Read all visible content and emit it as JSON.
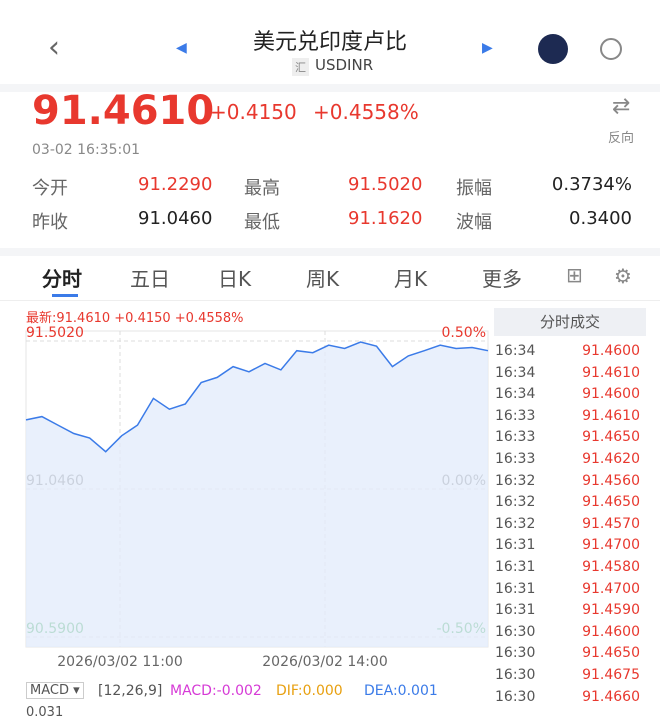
{
  "header": {
    "title": "美元兑印度卢比",
    "badge": "汇",
    "symbol": "USDINR"
  },
  "quote": {
    "price": "91.4610",
    "change": "+0.4150",
    "percent": "+0.4558%",
    "swap_label": "反向",
    "time": "03-02 16:35:01"
  },
  "stats": {
    "rows": [
      [
        "今开",
        "91.2290",
        "最高",
        "91.5020",
        "振幅",
        "0.3734%"
      ],
      [
        "昨收",
        "91.0460",
        "最低",
        "91.1620",
        "波幅",
        "0.3400"
      ]
    ]
  },
  "tabs": [
    "分时",
    "五日",
    "日K",
    "周K",
    "月K",
    "更多"
  ],
  "chart": {
    "type": "line",
    "legend": "最新:91.4610 +0.4150 +0.4558%",
    "color": "#3b7be8",
    "values": [
      91.259,
      91.269,
      91.243,
      91.217,
      91.203,
      91.161,
      91.21,
      91.243,
      91.325,
      91.292,
      91.308,
      91.374,
      91.39,
      91.423,
      91.407,
      91.433,
      91.413,
      91.472,
      91.466,
      91.489,
      91.479,
      91.499,
      91.486,
      91.423,
      91.456,
      91.472,
      91.489,
      91.479,
      91.482,
      91.472
    ],
    "ylim": [
      90.59,
      91.502
    ],
    "yticks": [
      {
        "value": 90.59,
        "label": "90.5900"
      },
      {
        "value": 91.046,
        "label": "91.0460"
      },
      {
        "value": 91.502,
        "label": "91.5020"
      }
    ],
    "y2lim": [
      -0.5,
      0.5
    ],
    "y2ticks": [
      {
        "value": -0.5,
        "label": "-0.50%"
      },
      {
        "value": 0,
        "label": "0.00%"
      },
      {
        "value": 0.5,
        "label": "0.50%"
      }
    ],
    "x_labels": [
      "2026/03/02 11:00",
      "2026/03/02 14:00"
    ]
  },
  "trades": {
    "title": "分时成交",
    "rows": [
      [
        "16:34",
        "91.4600"
      ],
      [
        "16:34",
        "91.4610"
      ],
      [
        "16:34",
        "91.4600"
      ],
      [
        "16:33",
        "91.4610"
      ],
      [
        "16:33",
        "91.4650"
      ],
      [
        "16:33",
        "91.4620"
      ],
      [
        "16:32",
        "91.4560"
      ],
      [
        "16:32",
        "91.4650"
      ],
      [
        "16:32",
        "91.4570"
      ],
      [
        "16:31",
        "91.4700"
      ],
      [
        "16:31",
        "91.4580"
      ],
      [
        "16:31",
        "91.4700"
      ],
      [
        "16:31",
        "91.4590"
      ],
      [
        "16:30",
        "91.4600"
      ],
      [
        "16:30",
        "91.4650"
      ],
      [
        "16:30",
        "91.4675"
      ],
      [
        "16:30",
        "91.4660"
      ]
    ]
  },
  "macd": {
    "name": "MACD",
    "params": "[12,26,9]",
    "macd": "MACD:-0.002",
    "diff": "DIF:0.000",
    "dea": "DEA:0.001",
    "axis": "0.031"
  }
}
